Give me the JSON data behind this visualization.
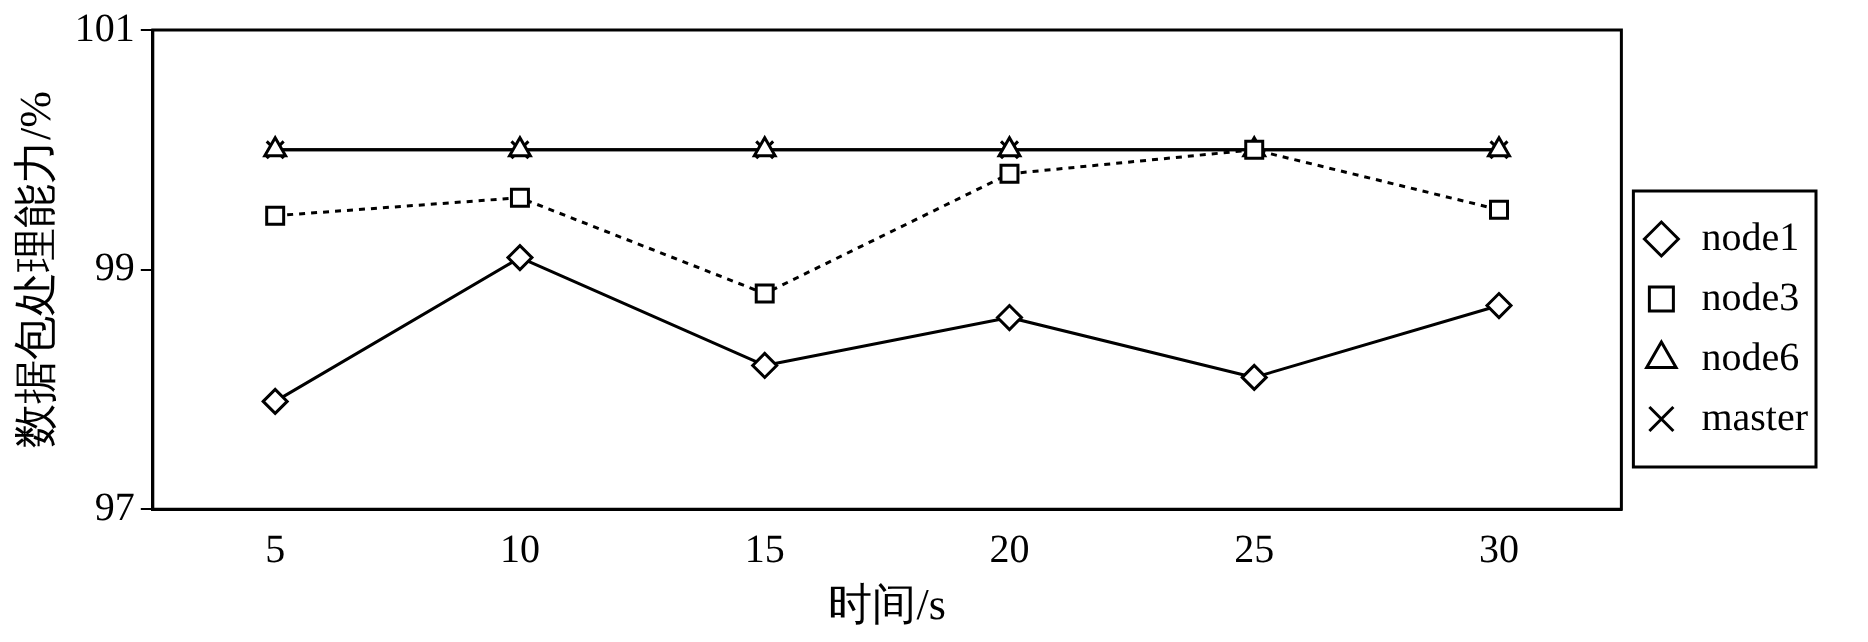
{
  "chart_data": {
    "type": "line",
    "xlabel": "时间/s",
    "ylabel": "数据包处理能力/%",
    "categories": [
      "5",
      "10",
      "15",
      "20",
      "25",
      "30"
    ],
    "ylim": [
      97,
      101
    ],
    "yticks": [
      97,
      99,
      101
    ],
    "grid": false,
    "legend": "right",
    "series": [
      {
        "name": "node1",
        "color": "#000000",
        "marker": "diamond",
        "line_style": "solid",
        "values": [
          97.9,
          99.1,
          98.2,
          98.6,
          98.1,
          98.7
        ]
      },
      {
        "name": "node3",
        "color": "#000000",
        "marker": "square",
        "line_style": "dotted",
        "values": [
          99.45,
          99.6,
          98.8,
          99.8,
          100,
          99.5
        ]
      },
      {
        "name": "node6",
        "color": "#000000",
        "marker": "triangle",
        "line_style": "solid",
        "values": [
          100,
          100,
          100,
          100,
          100,
          100
        ]
      },
      {
        "name": "master",
        "color": "#000000",
        "marker": "cross",
        "line_style": "solid",
        "values": [
          100,
          100,
          100,
          100,
          100,
          100
        ]
      }
    ]
  }
}
